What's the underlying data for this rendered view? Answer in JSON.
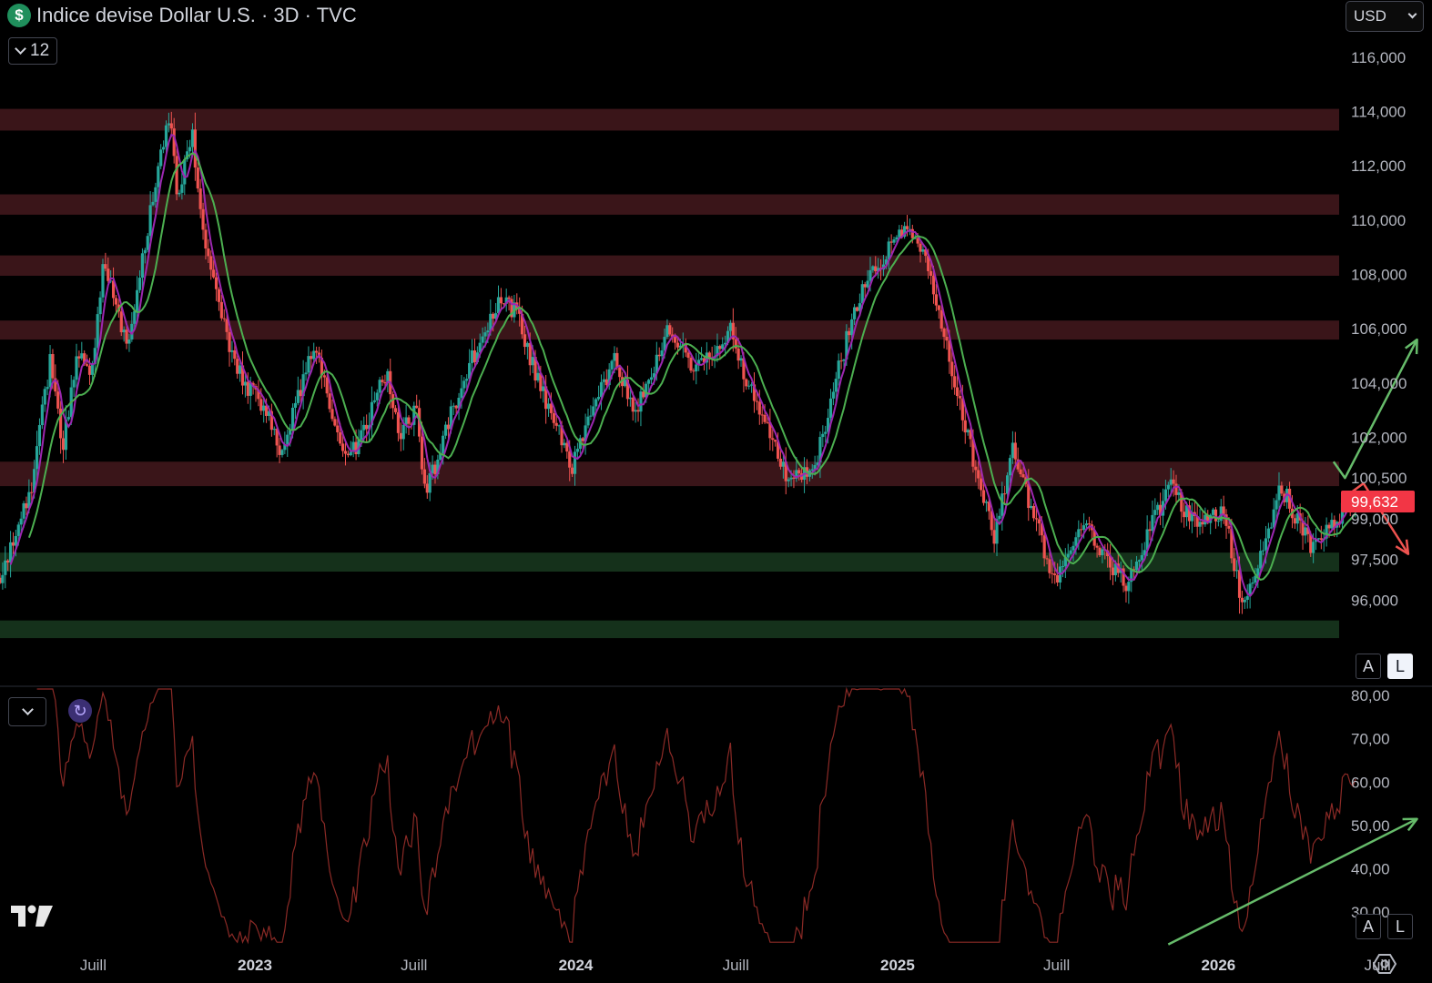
{
  "header": {
    "symbol_icon": "dollar-icon",
    "symbol_glyph": "$",
    "title": "Indice devise Dollar U.S. · 3D · TVC",
    "indicator_count": "12",
    "currency": "USD"
  },
  "colors": {
    "background": "#000000",
    "up": "#26a69a",
    "down": "#ef5350",
    "ma_fast": "#9c27b0",
    "ma_slow": "#4caf50",
    "resistance_zone": "#3a1519",
    "support_zone": "#15311b",
    "rsi_line": "#8b2a26",
    "arrow_up": "#66bb6a",
    "arrow_down": "#ef5350",
    "price_label": "#f23645"
  },
  "scale_buttons": {
    "auto": "A",
    "log": "L"
  },
  "chart_data": [
    {
      "type": "candlestick",
      "title": "Indice devise Dollar U.S. · 3D · TVC",
      "y_axis": {
        "range": [
          94.2,
          116.3
        ],
        "ticks": [
          "116,000",
          "114,000",
          "112,000",
          "110,000",
          "108,000",
          "106,000",
          "104,000",
          "102,000",
          "100,500",
          "99,000",
          "97,500",
          "96,000"
        ],
        "tick_values": [
          116,
          114,
          112,
          110,
          108,
          106,
          104,
          102,
          100.5,
          99,
          97.5,
          96
        ]
      },
      "x_axis": {
        "range": [
          "2022-03-17",
          "2026-09-01"
        ],
        "labels": [
          {
            "text": "Juill",
            "date": "2022-07-01",
            "bold": false
          },
          {
            "text": "2023",
            "date": "2023-01-01",
            "bold": true
          },
          {
            "text": "Juill",
            "date": "2023-07-01",
            "bold": false
          },
          {
            "text": "2024",
            "date": "2024-01-01",
            "bold": true
          },
          {
            "text": "Juill",
            "date": "2024-07-01",
            "bold": false
          },
          {
            "text": "2025",
            "date": "2025-01-01",
            "bold": true
          },
          {
            "text": "Juill",
            "date": "2025-07-01",
            "bold": false
          },
          {
            "text": "2026",
            "date": "2026-01-01",
            "bold": true
          },
          {
            "text": "Juill",
            "date": "2026-07-01",
            "bold": false
          }
        ]
      },
      "last_price": 99.632,
      "last_price_label": "99,632",
      "price_path": [
        [
          "2022-03-17",
          96.6
        ],
        [
          "2022-04-20",
          99.9
        ],
        [
          "2022-05-13",
          104.8
        ],
        [
          "2022-05-27",
          101.6
        ],
        [
          "2022-06-14",
          105.2
        ],
        [
          "2022-06-28",
          104.2
        ],
        [
          "2022-07-14",
          108.6
        ],
        [
          "2022-08-10",
          105.2
        ],
        [
          "2022-08-31",
          109.6
        ],
        [
          "2022-09-27",
          114.1
        ],
        [
          "2022-10-05",
          110.6
        ],
        [
          "2022-10-21",
          113.3
        ],
        [
          "2022-11-10",
          108.2
        ],
        [
          "2022-11-30",
          105.7
        ],
        [
          "2022-12-20",
          104.0
        ],
        [
          "2023-01-11",
          103.1
        ],
        [
          "2023-02-01",
          101.4
        ],
        [
          "2023-03-08",
          105.4
        ],
        [
          "2023-04-13",
          101.2
        ],
        [
          "2023-04-26",
          101.6
        ],
        [
          "2023-05-31",
          104.4
        ],
        [
          "2023-06-15",
          102.0
        ],
        [
          "2023-07-03",
          103.1
        ],
        [
          "2023-07-14",
          99.8
        ],
        [
          "2023-08-20",
          103.6
        ],
        [
          "2023-10-03",
          107.0
        ],
        [
          "2023-10-25",
          106.6
        ],
        [
          "2023-11-15",
          104.4
        ],
        [
          "2023-12-27",
          100.9
        ],
        [
          "2024-02-14",
          104.9
        ],
        [
          "2024-03-08",
          102.7
        ],
        [
          "2024-04-16",
          106.2
        ],
        [
          "2024-05-15",
          104.3
        ],
        [
          "2024-06-25",
          105.9
        ],
        [
          "2024-07-17",
          103.8
        ],
        [
          "2024-08-27",
          100.6
        ],
        [
          "2024-09-27",
          100.6
        ],
        [
          "2024-10-25",
          104.4
        ],
        [
          "2024-11-22",
          107.6
        ],
        [
          "2025-01-13",
          109.8
        ],
        [
          "2025-02-03",
          108.8
        ],
        [
          "2025-03-06",
          104.0
        ],
        [
          "2025-04-21",
          98.2
        ],
        [
          "2025-05-12",
          101.5
        ],
        [
          "2025-06-30",
          96.6
        ],
        [
          "2025-07-28",
          99.0
        ],
        [
          "2025-08-22",
          97.7
        ],
        [
          "2025-09-17",
          96.6
        ],
        [
          "2025-10-20",
          98.9
        ],
        [
          "2025-11-05",
          100.2
        ],
        [
          "2025-12-05",
          98.9
        ],
        [
          "2026-01-08",
          99.2
        ],
        [
          "2026-01-27",
          96.0
        ],
        [
          "2026-02-13",
          96.9
        ],
        [
          "2026-03-13",
          100.2
        ],
        [
          "2026-04-15",
          98.0
        ],
        [
          "2026-05-15",
          99.0
        ],
        [
          "2026-06-05",
          99.8
        ],
        [
          "2026-06-08",
          99.63
        ]
      ],
      "zones": [
        {
          "kind": "resistance",
          "low": 113.3,
          "high": 114.1
        },
        {
          "kind": "resistance",
          "low": 110.2,
          "high": 110.95
        },
        {
          "kind": "resistance",
          "low": 107.95,
          "high": 108.7
        },
        {
          "kind": "resistance",
          "low": 105.6,
          "high": 106.3
        },
        {
          "kind": "resistance",
          "low": 100.2,
          "high": 101.1
        },
        {
          "kind": "support",
          "low": 97.05,
          "high": 97.75
        },
        {
          "kind": "support",
          "low": 94.6,
          "high": 95.25
        }
      ],
      "annotations": [
        {
          "kind": "arrow",
          "color": "up",
          "points": [
            [
              "2026-05-12",
              101.1
            ],
            [
              "2026-05-25",
              100.5
            ],
            [
              "2026-08-15",
              105.6
            ]
          ]
        },
        {
          "kind": "arrow",
          "color": "down",
          "points": [
            [
              "2026-05-25",
              99.8
            ],
            [
              "2026-06-15",
              100.3
            ],
            [
              "2026-08-05",
              97.7
            ]
          ]
        }
      ]
    },
    {
      "type": "line",
      "y_axis": {
        "range": [
          22,
          81.5
        ],
        "ticks": [
          "80,00",
          "70,00",
          "60,00",
          "50,00",
          "40,00",
          "30,00"
        ],
        "tick_values": [
          80,
          70,
          60,
          50,
          40,
          30
        ]
      },
      "annotations": [
        {
          "kind": "arrow",
          "color": "up",
          "points": [
            [
              "2025-11-05",
              22.5
            ],
            [
              "2026-08-15",
              51.5
            ]
          ]
        }
      ]
    }
  ]
}
